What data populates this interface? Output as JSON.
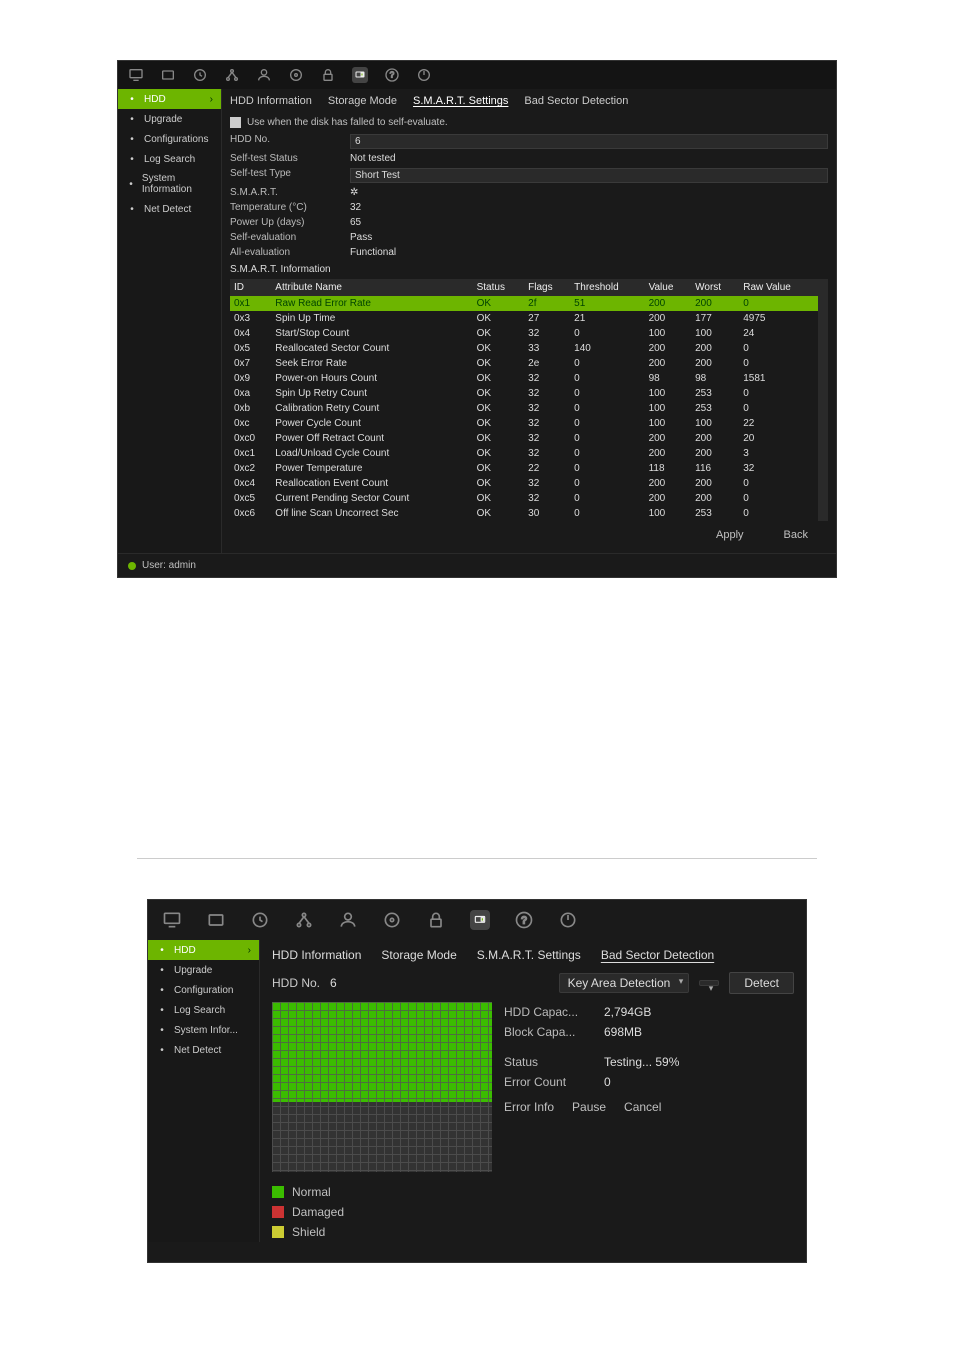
{
  "colors": {
    "accent": "#6db500",
    "background": "#1a1a1a",
    "grid_fill": "#3bbd00",
    "legend_normal": "#3bbd00",
    "legend_damaged": "#cc3333",
    "legend_shield": "#cccc33"
  },
  "window1": {
    "sidebar": {
      "items": [
        {
          "label": "HDD",
          "active": true
        },
        {
          "label": "Upgrade"
        },
        {
          "label": "Configurations"
        },
        {
          "label": "Log Search"
        },
        {
          "label": "System Information"
        },
        {
          "label": "Net Detect"
        }
      ]
    },
    "tabs": [
      {
        "label": "HDD Information"
      },
      {
        "label": "Storage Mode"
      },
      {
        "label": "S.M.A.R.T. Settings",
        "active": true
      },
      {
        "label": "Bad Sector Detection"
      }
    ],
    "checkbox_label": "Use when the disk has falled to self-evaluate.",
    "fields": [
      {
        "k": "HDD No.",
        "v": "6",
        "select": true
      },
      {
        "k": "Self-test Status",
        "v": "Not tested"
      },
      {
        "k": "Self-test Type",
        "v": "Short Test",
        "select": true
      },
      {
        "k": "S.M.A.R.T.",
        "v": "✲"
      },
      {
        "k": "Temperature (°C)",
        "v": "32"
      },
      {
        "k": "Power Up (days)",
        "v": "65"
      },
      {
        "k": "Self-evaluation",
        "v": "Pass"
      },
      {
        "k": "All-evaluation",
        "v": "Functional"
      }
    ],
    "section_header": "S.M.A.R.T. Information",
    "table": {
      "columns": [
        "ID",
        "Attribute Name",
        "Status",
        "Flags",
        "Threshold",
        "Value",
        "Worst",
        "Raw Value"
      ],
      "rows": [
        [
          "0x1",
          "Raw Read Error Rate",
          "OK",
          "2f",
          "51",
          "200",
          "200",
          "0"
        ],
        [
          "0x3",
          "Spin Up Time",
          "OK",
          "27",
          "21",
          "200",
          "177",
          "4975"
        ],
        [
          "0x4",
          "Start/Stop Count",
          "OK",
          "32",
          "0",
          "100",
          "100",
          "24"
        ],
        [
          "0x5",
          "Reallocated Sector Count",
          "OK",
          "33",
          "140",
          "200",
          "200",
          "0"
        ],
        [
          "0x7",
          "Seek Error Rate",
          "OK",
          "2e",
          "0",
          "200",
          "200",
          "0"
        ],
        [
          "0x9",
          "Power-on Hours Count",
          "OK",
          "32",
          "0",
          "98",
          "98",
          "1581"
        ],
        [
          "0xa",
          "Spin Up Retry Count",
          "OK",
          "32",
          "0",
          "100",
          "253",
          "0"
        ],
        [
          "0xb",
          "Calibration Retry Count",
          "OK",
          "32",
          "0",
          "100",
          "253",
          "0"
        ],
        [
          "0xc",
          "Power Cycle Count",
          "OK",
          "32",
          "0",
          "100",
          "100",
          "22"
        ],
        [
          "0xc0",
          "Power Off Retract Count",
          "OK",
          "32",
          "0",
          "200",
          "200",
          "20"
        ],
        [
          "0xc1",
          "Load/Unload Cycle Count",
          "OK",
          "32",
          "0",
          "200",
          "200",
          "3"
        ],
        [
          "0xc2",
          "Power Temperature",
          "OK",
          "22",
          "0",
          "118",
          "116",
          "32"
        ],
        [
          "0xc4",
          "Reallocation Event Count",
          "OK",
          "32",
          "0",
          "200",
          "200",
          "0"
        ],
        [
          "0xc5",
          "Current Pending Sector Count",
          "OK",
          "32",
          "0",
          "200",
          "200",
          "0"
        ],
        [
          "0xc6",
          "Off line Scan Uncorrect Sec",
          "OK",
          "30",
          "0",
          "100",
          "253",
          "0"
        ]
      ],
      "highlight_row": 0
    },
    "footer": {
      "apply": "Apply",
      "back": "Back"
    },
    "userbar": "User: admin"
  },
  "window2": {
    "sidebar": {
      "items": [
        {
          "label": "HDD",
          "active": true
        },
        {
          "label": "Upgrade"
        },
        {
          "label": "Configuration"
        },
        {
          "label": "Log Search"
        },
        {
          "label": "System Infor..."
        },
        {
          "label": "Net Detect"
        }
      ]
    },
    "tabs": [
      {
        "label": "HDD Information"
      },
      {
        "label": "Storage Mode"
      },
      {
        "label": "S.M.A.R.T. Settings"
      },
      {
        "label": "Bad Sector Detection",
        "active": true
      }
    ],
    "hddrow": {
      "label": "HDD No.",
      "value": "6",
      "type": "Key Area Detection",
      "btn": "Detect"
    },
    "info": [
      {
        "k": "HDD Capac...",
        "v": "2,794GB"
      },
      {
        "k": "Block Capa...",
        "v": "698MB"
      }
    ],
    "status": [
      {
        "k": "Status",
        "v": "Testing... 59%"
      },
      {
        "k": "Error Count",
        "v": "0"
      }
    ],
    "buttons": {
      "errorinfo": "Error Info",
      "pause": "Pause",
      "cancel": "Cancel"
    },
    "legend": [
      {
        "label": "Normal",
        "color": "#3bbd00"
      },
      {
        "label": "Damaged",
        "color": "#cc3333"
      },
      {
        "label": "Shield",
        "color": "#cccc33"
      }
    ],
    "progress_pct": 59
  }
}
